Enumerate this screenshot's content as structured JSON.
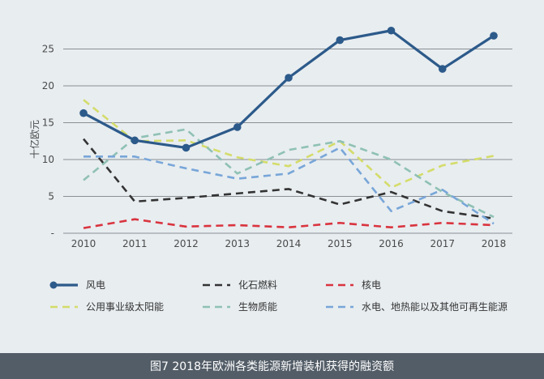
{
  "caption": "图7 2018年欧洲各类能源新增装机获得的融资额",
  "chart_data": {
    "type": "line",
    "title": "",
    "xlabel": "",
    "ylabel": "十亿欧元",
    "x": [
      "2010",
      "2011",
      "2012",
      "2013",
      "2014",
      "2015",
      "2016",
      "2017",
      "2018"
    ],
    "ylim": [
      0,
      30
    ],
    "yticks": [
      "-",
      "5",
      "10",
      "15",
      "20",
      "25"
    ],
    "grid": "horizontal",
    "legend_position": "bottom",
    "series": [
      {
        "name": "风电",
        "color": "#2c5a8a",
        "style": "solid-markers",
        "values": [
          16.3,
          12.6,
          11.6,
          14.4,
          21.1,
          26.2,
          27.5,
          22.3,
          26.8
        ]
      },
      {
        "name": "化石燃料",
        "color": "#333333",
        "style": "dashed",
        "values": [
          12.8,
          4.3,
          4.8,
          5.4,
          6.0,
          3.9,
          5.6,
          3.0,
          2.0
        ]
      },
      {
        "name": "核电",
        "color": "#d9343f",
        "style": "dashed",
        "values": [
          0.7,
          1.9,
          0.9,
          1.1,
          0.8,
          1.4,
          0.8,
          1.4,
          1.1
        ]
      },
      {
        "name": "公用事业级太阳能",
        "color": "#d4dc6a",
        "style": "dashed",
        "values": [
          18.1,
          12.5,
          12.6,
          10.3,
          9.1,
          12.5,
          6.2,
          9.2,
          10.5
        ]
      },
      {
        "name": "生物质能",
        "color": "#8fc1b4",
        "style": "dashed",
        "values": [
          7.2,
          12.9,
          14.1,
          8.1,
          11.3,
          12.5,
          10.0,
          5.6,
          2.2
        ]
      },
      {
        "name": "水电、地热能以及其他可再生能源",
        "color": "#78a6d8",
        "style": "dashed",
        "values": [
          10.4,
          10.4,
          8.8,
          7.4,
          8.1,
          11.6,
          3.0,
          5.9,
          1.3
        ]
      }
    ]
  }
}
